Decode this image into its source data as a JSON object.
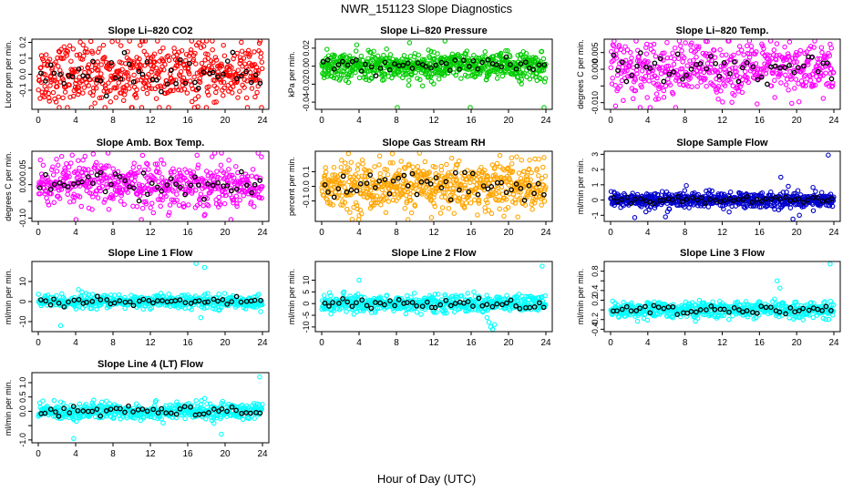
{
  "figure": {
    "title": "NWR_151123  Slope Diagnostics",
    "xlabel": "Hour of Day (UTC)",
    "x_ticks": [
      "0",
      "4",
      "8",
      "12",
      "16",
      "20",
      "24"
    ]
  },
  "chart_data": [
    {
      "type": "scatter",
      "title": "Slope Li–820 CO2",
      "ylabel": "Licor ppm per min.",
      "xlim": [
        0,
        24
      ],
      "ylim": [
        -0.22,
        0.22
      ],
      "yticks": [
        -0.1,
        0.0,
        0.1,
        0.2
      ],
      "ytick_labels": [
        "-0.1",
        "0.0",
        "0.1",
        "0.2"
      ],
      "color": "#ff0000",
      "overlay_color": "#000000",
      "n_points": 560,
      "spread": 0.095,
      "outliers": [],
      "grid": false
    },
    {
      "type": "scatter",
      "title": "Slope Li–820 Pressure",
      "ylabel": "kPa per min.",
      "xlim": [
        0,
        24
      ],
      "ylim": [
        -0.048,
        0.03
      ],
      "yticks": [
        -0.04,
        -0.02,
        0.0,
        0.02
      ],
      "ytick_labels": [
        "-0.04",
        "-0.02",
        "0.00",
        "0.02"
      ],
      "color": "#00cc00",
      "overlay_color": "#000000",
      "n_points": 700,
      "spread": 0.0075,
      "outliers": [
        [
          1.3,
          -0.013
        ],
        [
          2.6,
          -0.016
        ],
        [
          8.1,
          -0.048
        ],
        [
          10.8,
          -0.022
        ],
        [
          15.9,
          -0.047
        ],
        [
          23.8,
          -0.048
        ],
        [
          9.4,
          0.026
        ],
        [
          13.2,
          0.028
        ]
      ],
      "grid": false
    },
    {
      "type": "scatter",
      "title": "Slope Li–820 Temp.",
      "ylabel": "degrees C per min.",
      "xlim": [
        0,
        24
      ],
      "ylim": [
        -0.012,
        0.009
      ],
      "yticks": [
        -0.01,
        -0.005,
        0.0,
        0.005
      ],
      "ytick_labels": [
        "-0.010",
        "0.000",
        "0.005"
      ],
      "color": "#ff00ff",
      "overlay_color": "#000000",
      "n_points": 520,
      "spread": 0.0042,
      "outliers": [
        [
          23.6,
          0.0075
        ],
        [
          3.9,
          0.0075
        ]
      ],
      "grid": false
    },
    {
      "type": "scatter",
      "title": "Slope Amb. Box Temp.",
      "ylabel": "degrees C per min.",
      "xlim": [
        0,
        24
      ],
      "ylim": [
        -0.11,
        0.1
      ],
      "yticks": [
        -0.1,
        -0.05,
        0.0,
        0.05
      ],
      "ytick_labels": [
        "-0.10",
        "0.00",
        "0.05"
      ],
      "color": "#ff00ff",
      "overlay_color": "#000000",
      "n_points": 560,
      "spread": 0.035,
      "outliers": [
        [
          18.9,
          0.097
        ],
        [
          5.0,
          0.085
        ]
      ],
      "grid": false
    },
    {
      "type": "scatter",
      "title": "Slope Gas Stream RH",
      "ylabel": "percent per min.",
      "xlim": [
        0,
        24
      ],
      "ylim": [
        -0.24,
        0.24
      ],
      "yticks": [
        -0.1,
        0.0,
        0.1
      ],
      "ytick_labels": [
        "-0.1",
        "0.0",
        "0.1"
      ],
      "color": "#ffa500",
      "overlay_color": "#000000",
      "n_points": 650,
      "spread": 0.085,
      "outliers": [],
      "grid": false
    },
    {
      "type": "scatter",
      "title": "Slope Sample Flow",
      "ylabel": "ml/min per min.",
      "xlim": [
        0,
        24
      ],
      "ylim": [
        -1.4,
        3.2
      ],
      "yticks": [
        -1,
        0,
        1,
        2,
        3
      ],
      "ytick_labels": [
        "-1",
        "0",
        "1",
        "2",
        "3"
      ],
      "color": "#0000cc",
      "overlay_color": "#000000",
      "n_points": 650,
      "spread": 0.25,
      "outliers": [
        [
          23.4,
          2.95
        ],
        [
          18.3,
          1.5
        ],
        [
          5.9,
          -1.1
        ],
        [
          2.6,
          -1.15
        ],
        [
          19.6,
          -1.25
        ],
        [
          20.3,
          -1.0
        ],
        [
          19.1,
          0.9
        ]
      ],
      "grid": false
    },
    {
      "type": "scatter",
      "title": "Slope Line 1 Flow",
      "ylabel": "ml/min per min.",
      "xlim": [
        0,
        24
      ],
      "ylim": [
        -15,
        20
      ],
      "yticks": [
        -10,
        0,
        10
      ],
      "ytick_labels": [
        "-10",
        "0",
        "10"
      ],
      "color": "#00ffff",
      "overlay_color": "#000000",
      "n_points": 520,
      "spread": 1.6,
      "outliers": [
        [
          16.9,
          19
        ],
        [
          17.8,
          17
        ],
        [
          2.4,
          -12
        ],
        [
          4.3,
          6
        ],
        [
          17.4,
          -8
        ],
        [
          16.4,
          -4
        ],
        [
          23.8,
          -5
        ]
      ],
      "grid": false
    },
    {
      "type": "scatter",
      "title": "Slope Line 2 Flow",
      "ylabel": "ml/min per min.",
      "xlim": [
        0,
        24
      ],
      "ylim": [
        -12,
        18
      ],
      "yticks": [
        -10,
        -5,
        0,
        5,
        10
      ],
      "ytick_labels": [
        "-10",
        "-5",
        "0",
        "5",
        "10"
      ],
      "color": "#00ffff",
      "overlay_color": "#000000",
      "n_points": 560,
      "spread": 1.8,
      "outliers": [
        [
          23.6,
          16
        ],
        [
          4.0,
          10
        ],
        [
          17.9,
          -8
        ],
        [
          18.1,
          -10
        ],
        [
          18.3,
          -11
        ],
        [
          18.5,
          -9
        ],
        [
          17.7,
          -6
        ]
      ],
      "grid": false
    },
    {
      "type": "scatter",
      "title": "Slope Line 3 Flow",
      "ylabel": "ml/min per min.",
      "xlim": [
        0,
        24
      ],
      "ylim": [
        -0.45,
        1.0
      ],
      "yticks": [
        -0.4,
        -0.2,
        0.0,
        0.2,
        0.4,
        0.6,
        0.8
      ],
      "ytick_labels": [
        "-0.4",
        "-0.2",
        "0.2",
        "0.4",
        "0.8"
      ],
      "color": "#00ffff",
      "overlay_color": "#000000",
      "n_points": 560,
      "spread": 0.08,
      "outliers": [
        [
          23.6,
          0.95
        ],
        [
          17.9,
          0.6
        ],
        [
          18.2,
          0.45
        ]
      ],
      "grid": false
    },
    {
      "type": "scatter",
      "title": "Slope Line 4 (LT) Flow",
      "ylabel": "ml/min per min.",
      "xlim": [
        0,
        24
      ],
      "ylim": [
        -1.1,
        1.35
      ],
      "yticks": [
        -1.0,
        -0.5,
        0.0,
        0.5,
        1.0
      ],
      "ytick_labels": [
        "-1.0",
        "0.0",
        "0.5",
        "1.0"
      ],
      "color": "#00ffff",
      "overlay_color": "#000000",
      "n_points": 520,
      "spread": 0.15,
      "outliers": [
        [
          23.7,
          1.2
        ],
        [
          3.8,
          -0.95
        ],
        [
          19.6,
          -0.8
        ]
      ],
      "grid": false
    }
  ]
}
